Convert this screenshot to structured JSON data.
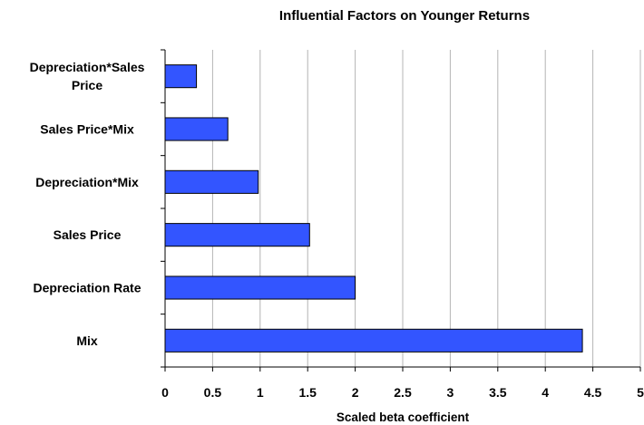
{
  "chart_data": {
    "type": "bar",
    "orientation": "horizontal",
    "title": "Influential Factors on Younger Returns",
    "xlabel": "Scaled beta coefficient",
    "ylabel": "",
    "categories": [
      "Depreciation*Sales Price",
      "Sales Price*Mix",
      "Depreciation*Mix",
      "Sales Price",
      "Depreciation Rate",
      "Mix"
    ],
    "category_lines": [
      [
        "Depreciation*Sales",
        "Price"
      ],
      [
        "Sales Price*Mix"
      ],
      [
        "Depreciation*Mix"
      ],
      [
        "Sales Price"
      ],
      [
        "Depreciation Rate"
      ],
      [
        "Mix"
      ]
    ],
    "values": [
      0.33,
      0.66,
      0.98,
      1.52,
      2.0,
      4.39
    ],
    "xlim": [
      0,
      5
    ],
    "xticks": [
      "0",
      "0.5",
      "1",
      "1.5",
      "2",
      "2.5",
      "3",
      "3.5",
      "4",
      "4.5",
      "5"
    ],
    "xgrid": true,
    "bar_color": "#3355ff",
    "legend": "none"
  }
}
